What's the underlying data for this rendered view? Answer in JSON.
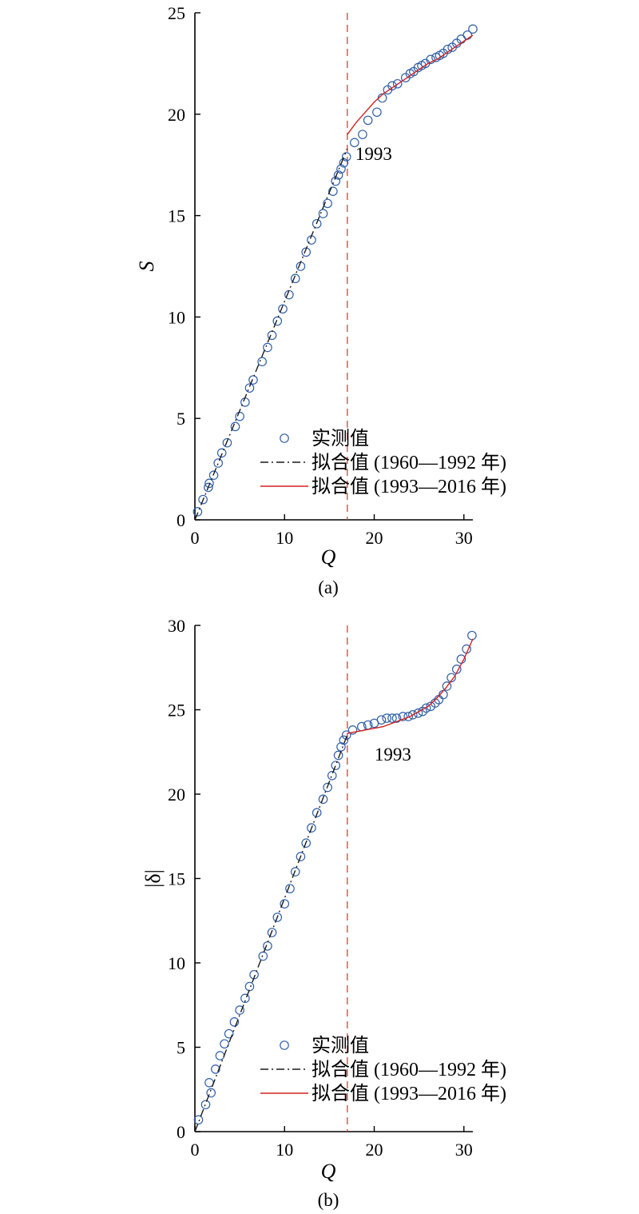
{
  "chart_data": [
    {
      "type": "scatter",
      "panel_label": "(a)",
      "xlabel": "Q",
      "ylabel": "S",
      "xlim": [
        0,
        31
      ],
      "ylim": [
        0,
        25
      ],
      "xticks": [
        0,
        10,
        20,
        30
      ],
      "yticks": [
        0,
        5,
        10,
        15,
        20,
        25
      ],
      "grid": false,
      "legend_position": "bottom-right",
      "change_point": {
        "x": 17,
        "label": "1993",
        "color": "#e03c3c"
      },
      "series": [
        {
          "name": "实测值",
          "kind": "markers",
          "marker": "open-circle",
          "color": "#2f5fa8",
          "x": [
            0.3,
            0.9,
            1.5,
            1.6,
            2.1,
            2.6,
            3.0,
            3.6,
            4.5,
            5.0,
            5.6,
            6.1,
            6.5,
            7.5,
            8.1,
            8.6,
            9.2,
            9.8,
            10.5,
            11.2,
            11.8,
            12.4,
            13.0,
            13.6,
            14.3,
            14.8,
            15.4,
            15.7,
            16.0,
            16.3,
            16.6,
            16.9,
            17.8,
            18.7,
            19.3,
            20.3,
            20.9,
            21.5,
            22.0,
            22.6,
            23.5,
            24.0,
            24.4,
            24.9,
            25.3,
            25.7,
            26.3,
            26.9,
            27.3,
            27.7,
            28.2,
            28.7,
            29.2,
            29.7,
            30.4,
            31.0
          ],
          "y": [
            0.4,
            1.0,
            1.6,
            1.8,
            2.2,
            2.8,
            3.3,
            3.8,
            4.6,
            5.1,
            5.8,
            6.5,
            6.9,
            7.8,
            8.5,
            9.1,
            9.8,
            10.4,
            11.1,
            11.9,
            12.5,
            13.2,
            13.8,
            14.6,
            15.1,
            15.6,
            16.2,
            16.7,
            17.0,
            17.3,
            17.6,
            17.9,
            18.6,
            19.0,
            19.7,
            20.1,
            20.8,
            21.2,
            21.4,
            21.5,
            21.8,
            22.0,
            22.1,
            22.3,
            22.4,
            22.5,
            22.7,
            22.8,
            22.9,
            23.0,
            23.2,
            23.3,
            23.5,
            23.7,
            23.9,
            24.2
          ]
        },
        {
          "name": "拟合值 (1960—1992 年)",
          "kind": "line",
          "style": "dash-dot",
          "color": "#1a1a1a",
          "x": [
            0,
            17
          ],
          "y": [
            0,
            18.3
          ]
        },
        {
          "name": "拟合值 (1993—2016 年)",
          "kind": "line",
          "style": "solid",
          "color": "#d62020",
          "x": [
            17,
            18,
            19,
            20,
            21,
            22,
            23,
            24,
            25,
            26,
            27,
            28,
            29,
            30,
            31
          ],
          "y": [
            19.0,
            19.6,
            20.1,
            20.6,
            21.0,
            21.3,
            21.6,
            21.9,
            22.2,
            22.5,
            22.7,
            23.0,
            23.3,
            23.6,
            23.9
          ]
        }
      ]
    },
    {
      "type": "scatter",
      "panel_label": "(b)",
      "xlabel": "Q",
      "ylabel": "|δ|",
      "xlim": [
        0,
        31
      ],
      "ylim": [
        0,
        30
      ],
      "xticks": [
        0,
        10,
        20,
        30
      ],
      "yticks": [
        0,
        5,
        10,
        15,
        20,
        25,
        30
      ],
      "grid": false,
      "legend_position": "bottom-right",
      "change_point": {
        "x": 17,
        "label": "1993",
        "color": "#e03c3c"
      },
      "series": [
        {
          "name": "实测值",
          "kind": "markers",
          "marker": "open-circle",
          "color": "#2f5fa8",
          "x": [
            0.4,
            1.2,
            1.6,
            1.8,
            2.3,
            2.8,
            3.3,
            3.8,
            4.4,
            5.0,
            5.6,
            6.1,
            6.6,
            7.6,
            8.1,
            8.6,
            9.2,
            10.0,
            10.6,
            11.2,
            11.8,
            12.4,
            13.0,
            13.6,
            14.3,
            14.8,
            15.3,
            15.7,
            16.0,
            16.3,
            16.6,
            16.9,
            17.6,
            18.6,
            19.3,
            20.0,
            20.8,
            21.4,
            22.0,
            22.5,
            23.2,
            23.8,
            24.3,
            24.9,
            25.4,
            25.8,
            26.3,
            26.8,
            27.2,
            27.7,
            28.1,
            28.6,
            29.2,
            29.7,
            30.3,
            30.9
          ],
          "y": [
            0.7,
            1.6,
            2.9,
            2.3,
            3.7,
            4.5,
            5.2,
            5.8,
            6.5,
            7.2,
            7.9,
            8.6,
            9.3,
            10.4,
            11.0,
            11.8,
            12.7,
            13.5,
            14.4,
            15.4,
            16.3,
            17.1,
            18.0,
            18.9,
            19.7,
            20.4,
            21.1,
            21.7,
            22.3,
            22.8,
            23.2,
            23.5,
            23.8,
            24.0,
            24.1,
            24.2,
            24.4,
            24.5,
            24.5,
            24.5,
            24.6,
            24.6,
            24.7,
            24.8,
            24.9,
            25.1,
            25.2,
            25.4,
            25.6,
            25.9,
            26.4,
            26.9,
            27.4,
            28.0,
            28.6,
            29.4
          ]
        },
        {
          "name": "拟合值 (1960—1992 年)",
          "kind": "line",
          "style": "dash-dot",
          "color": "#1a1a1a",
          "x": [
            0,
            17
          ],
          "y": [
            0,
            23.5
          ]
        },
        {
          "name": "拟合值 (1993—2016 年)",
          "kind": "line",
          "style": "solid",
          "color": "#d62020",
          "x": [
            17,
            18,
            19,
            20,
            21,
            22,
            23,
            24,
            25,
            26,
            27,
            28,
            29,
            30,
            31
          ],
          "y": [
            23.6,
            23.7,
            23.8,
            23.9,
            24.0,
            24.2,
            24.4,
            24.6,
            24.9,
            25.2,
            25.7,
            26.3,
            27.0,
            28.0,
            29.2
          ]
        }
      ]
    }
  ]
}
